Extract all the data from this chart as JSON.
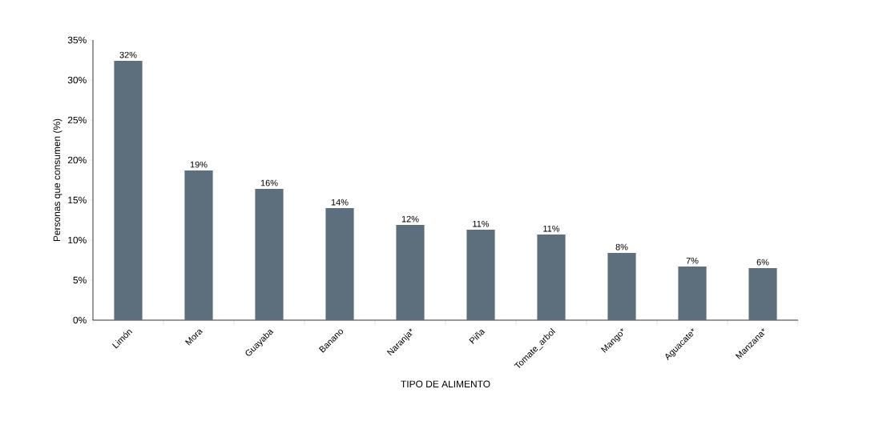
{
  "chart_data": {
    "type": "bar",
    "xlabel": "TIPO DE ALIMENTO",
    "ylabel": "Personas que consumen (%)",
    "categories": [
      "Limón",
      "Mora",
      "Guayaba",
      "Banano",
      "Naranja*",
      "Piña",
      "Tomate_arbol",
      "Mango*",
      "Aguacate*",
      "Manzana*"
    ],
    "values": [
      32.4,
      18.7,
      16.4,
      14.0,
      11.9,
      11.3,
      10.7,
      8.4,
      6.7,
      6.5
    ],
    "value_labels": [
      "32%",
      "19%",
      "16%",
      "14%",
      "12%",
      "11%",
      "11%",
      "8%",
      "7%",
      "6%"
    ],
    "color": "#5d6e7c",
    "ylim": [
      0,
      35
    ],
    "yticks": [
      {
        "value": 0,
        "label": "0%"
      },
      {
        "value": 5,
        "label": "5%"
      },
      {
        "value": 10,
        "label": "10%"
      },
      {
        "value": 15,
        "label": "15%"
      },
      {
        "value": 20,
        "label": "20%"
      },
      {
        "value": 25,
        "label": "25%"
      },
      {
        "value": 30,
        "label": "30%"
      },
      {
        "value": 35,
        "label": "35%"
      }
    ],
    "grid": false
  }
}
